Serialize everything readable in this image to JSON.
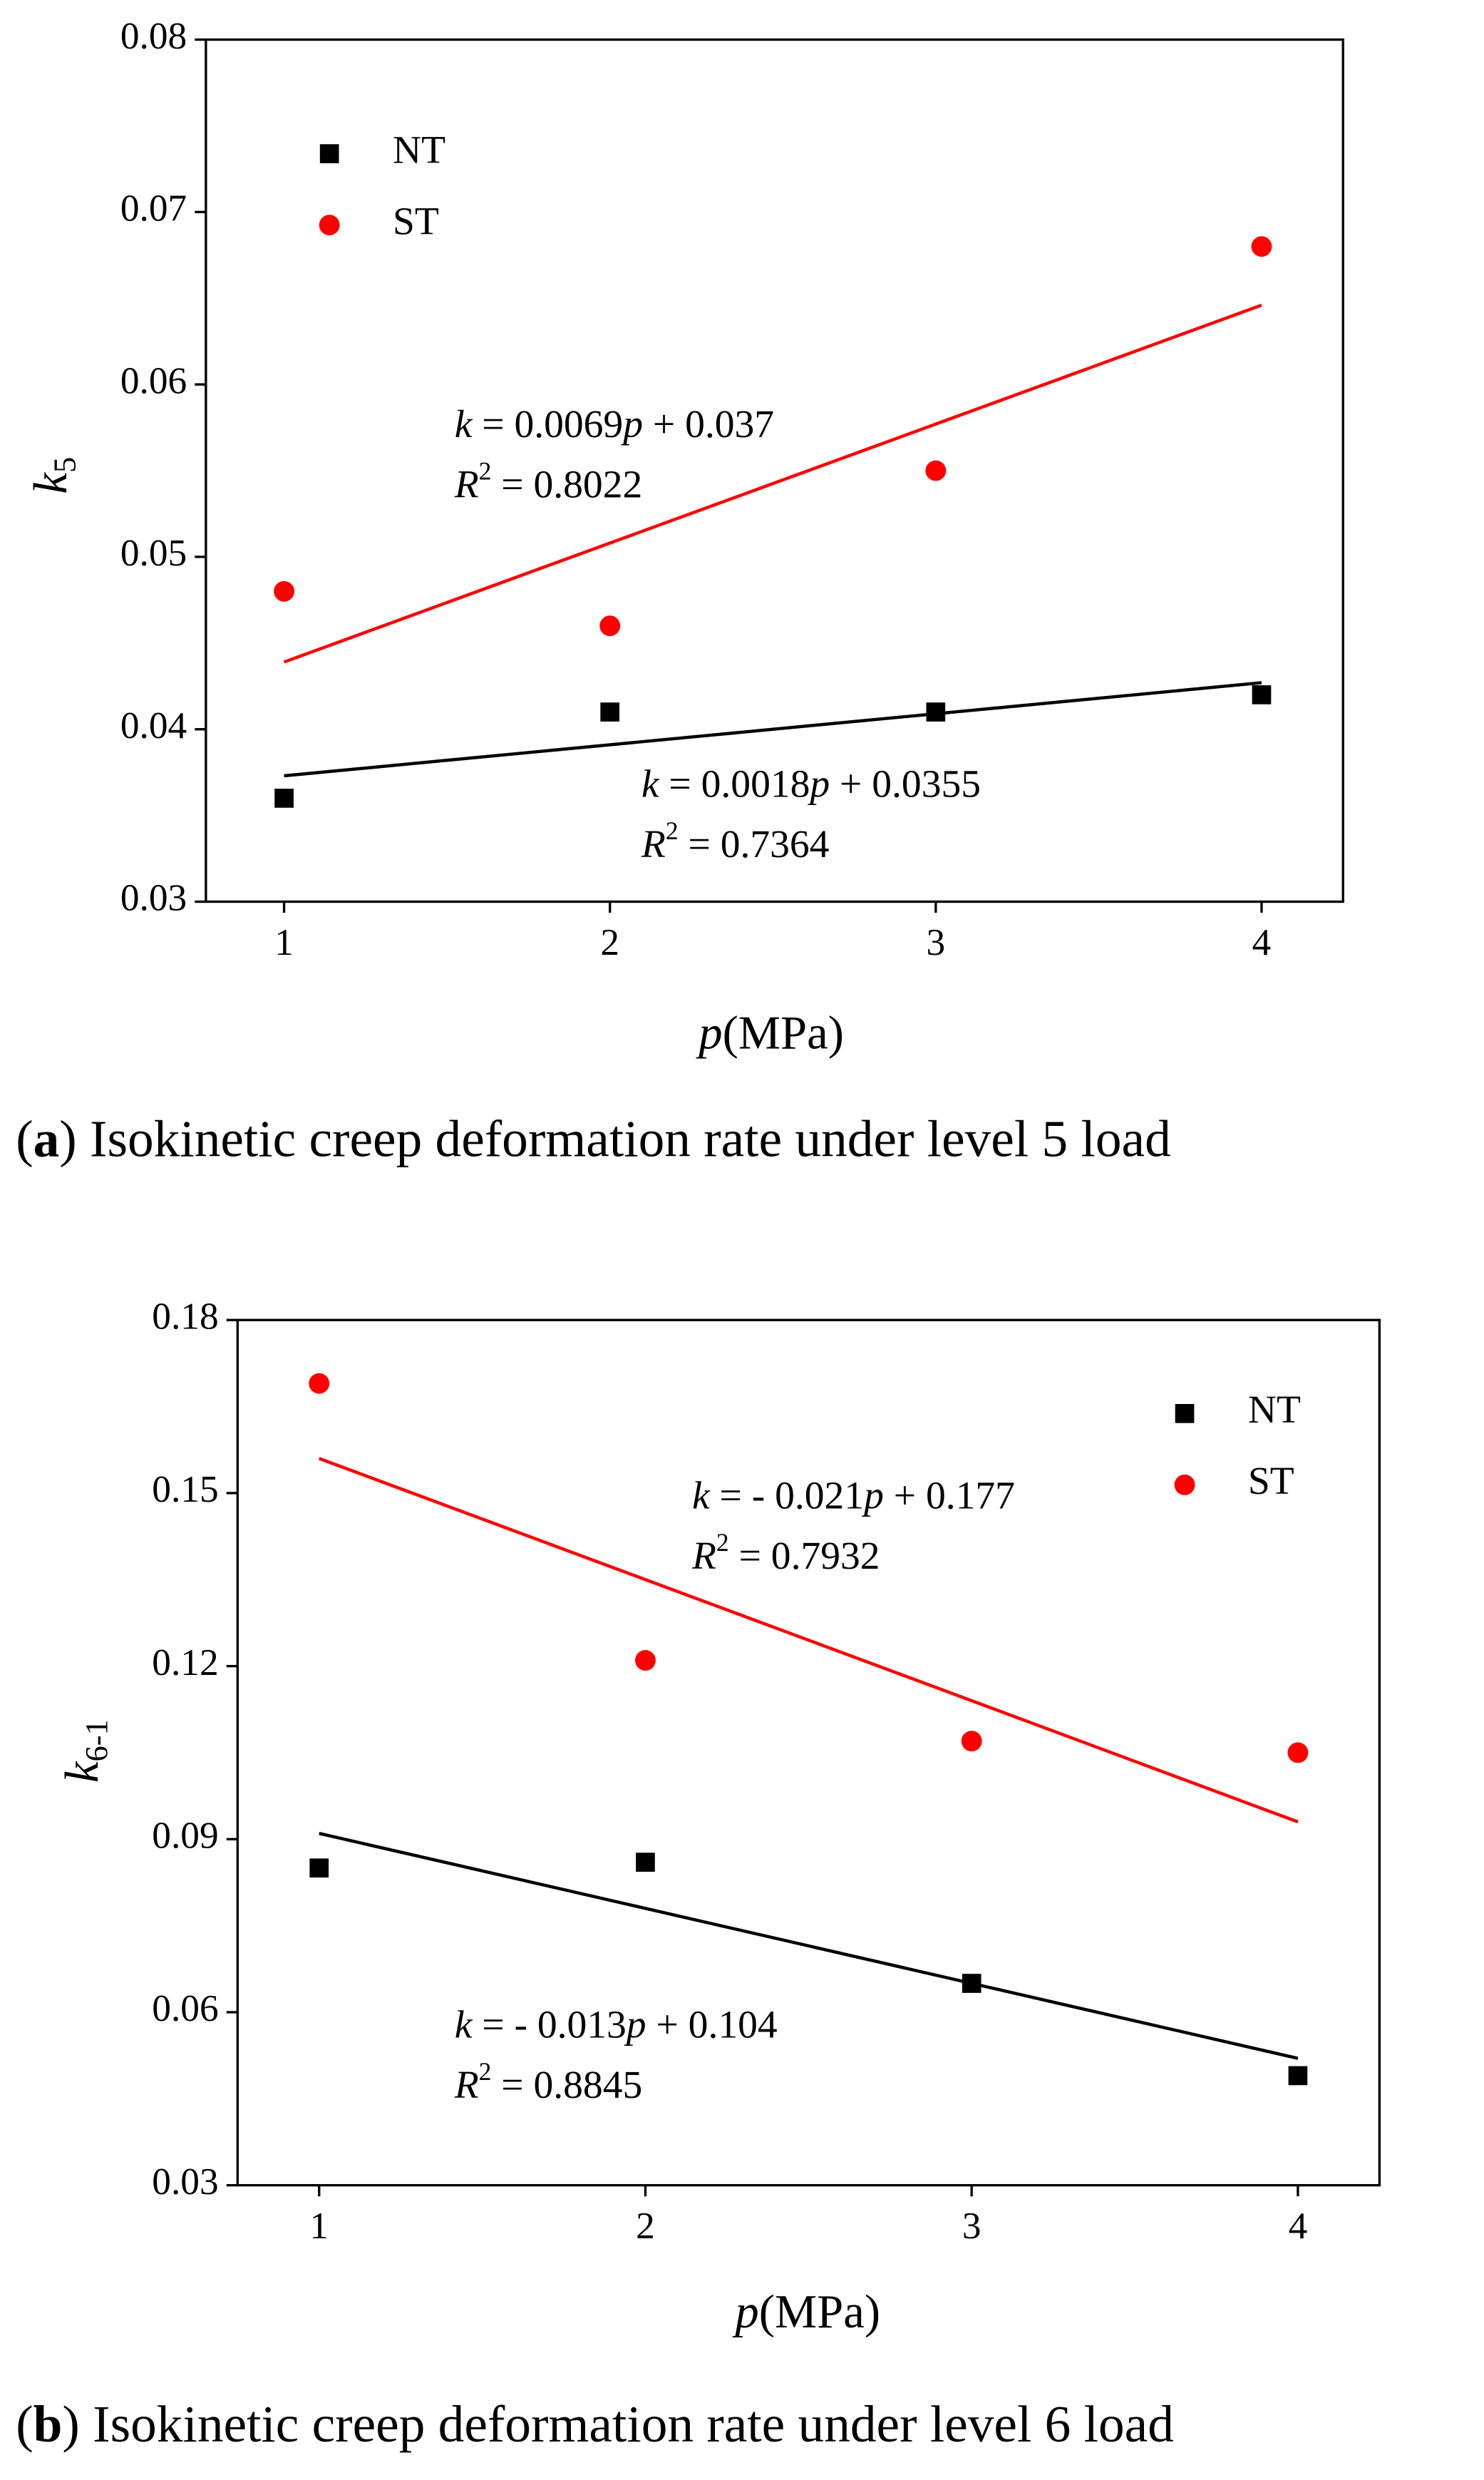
{
  "chart_data": [
    {
      "type": "scatter",
      "caption": [
        "(",
        "a",
        ") Isokinetic creep deformation rate under level 5 load"
      ],
      "xlabel": [
        "p",
        "(MPa)"
      ],
      "ylabel": [
        "k",
        "5"
      ],
      "xlim": [
        0.76,
        4.25
      ],
      "xticks": [
        1,
        2,
        3,
        4
      ],
      "ylim": [
        0.03,
        0.08
      ],
      "yticks": [
        0.03,
        0.04,
        0.05,
        0.06,
        0.07,
        0.08
      ],
      "legend": "upper left",
      "series": [
        {
          "name": "NT",
          "color": "#000000",
          "marker": "square",
          "x": [
            1,
            2,
            3,
            4
          ],
          "values": [
            0.036,
            0.041,
            0.041,
            0.042
          ],
          "fit": {
            "slope": 0.0018,
            "intercept": 0.0355
          },
          "equation": [
            "k",
            " = 0.0018",
            "p",
            " + 0.0355"
          ],
          "r2": [
            "R",
            "2",
            " = 0.7364"
          ]
        },
        {
          "name": "ST",
          "color": "#ff0000",
          "marker": "circle",
          "x": [
            1,
            2,
            3,
            4
          ],
          "values": [
            0.048,
            0.046,
            0.055,
            0.068
          ],
          "fit": {
            "slope": 0.0069,
            "intercept": 0.037
          },
          "equation": [
            "k",
            " = 0.0069",
            "p",
            " + 0.037"
          ],
          "r2": [
            "R",
            "2",
            " = 0.8022"
          ]
        }
      ]
    },
    {
      "type": "scatter",
      "caption": [
        "(",
        "b",
        ") Isokinetic creep deformation rate under level 6 load"
      ],
      "xlabel": [
        "p",
        "(MPa)"
      ],
      "ylabel": [
        "k",
        "6-1"
      ],
      "xlim": [
        0.75,
        4.25
      ],
      "xticks": [
        1,
        2,
        3,
        4
      ],
      "ylim": [
        0.03,
        0.18
      ],
      "yticks": [
        0.03,
        0.06,
        0.09,
        0.12,
        0.15,
        0.18
      ],
      "legend": "upper right",
      "series": [
        {
          "name": "NT",
          "color": "#000000",
          "marker": "square",
          "x": [
            1,
            2,
            3,
            4
          ],
          "values": [
            0.085,
            0.086,
            0.065,
            0.049
          ],
          "fit": {
            "slope": -0.013,
            "intercept": 0.104
          },
          "equation": [
            "k",
            " =  - 0.013",
            "p",
            " + 0.104"
          ],
          "r2": [
            "R",
            "2",
            " = 0.8845"
          ]
        },
        {
          "name": "ST",
          "color": "#ff0000",
          "marker": "circle",
          "x": [
            1,
            2,
            3,
            4
          ],
          "values": [
            0.169,
            0.121,
            0.107,
            0.105
          ],
          "fit": {
            "slope": -0.021,
            "intercept": 0.177
          },
          "equation": [
            "k",
            " =  - 0.021",
            "p",
            " + 0.177"
          ],
          "r2": [
            "R",
            "2",
            " = 0.7932"
          ]
        }
      ]
    }
  ]
}
